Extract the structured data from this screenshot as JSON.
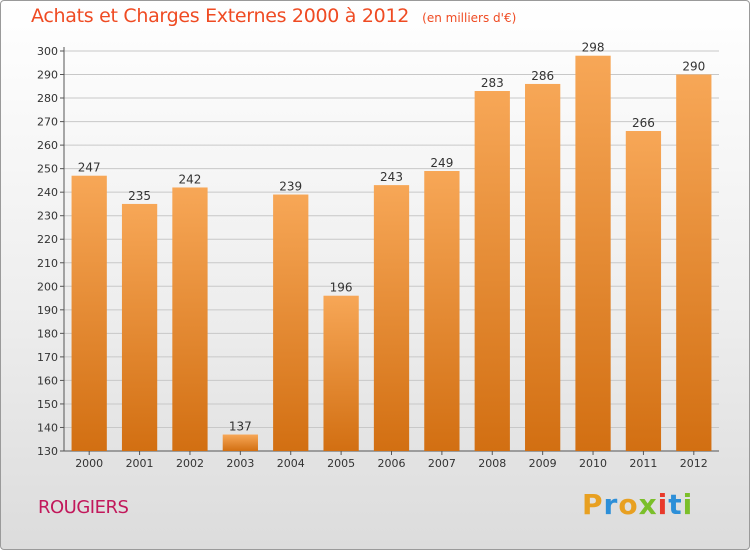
{
  "header": {
    "title": "Achats et Charges Externes 2000 à 2012",
    "subtitle": "(en milliers d'€)"
  },
  "footer": {
    "commune": "ROUGIERS",
    "brand_letters": [
      "P",
      "r",
      "o",
      "x",
      "i",
      "t",
      "i"
    ],
    "brand_colors": [
      "#e8a021",
      "#2d8fd8",
      "#e8a021",
      "#7bbf2a",
      "#e8392a",
      "#2d8fd8",
      "#7bbf2a"
    ]
  },
  "colors": {
    "bar_light": "#f7a757",
    "bar_dark": "#d26f12",
    "grid": "#c8c8c8",
    "text": "#333333"
  },
  "chart_data": {
    "type": "bar",
    "title": "Achats et Charges Externes 2000 à 2012",
    "subtitle": "(en milliers d'€)",
    "categories": [
      "2000",
      "2001",
      "2002",
      "2003",
      "2004",
      "2005",
      "2006",
      "2007",
      "2008",
      "2009",
      "2010",
      "2011",
      "2012"
    ],
    "values": [
      247,
      235,
      242,
      137,
      239,
      196,
      243,
      249,
      283,
      286,
      298,
      266,
      290
    ],
    "data_labels": [
      "247",
      "235",
      "242",
      "137",
      "239",
      "196",
      "243",
      "249",
      "283",
      "286",
      "298",
      "266",
      "290"
    ],
    "ylim": [
      130,
      300
    ],
    "yticks": [
      130,
      140,
      150,
      160,
      170,
      180,
      190,
      200,
      210,
      220,
      230,
      240,
      250,
      260,
      270,
      280,
      290,
      300
    ],
    "grid": true,
    "xlabel": "",
    "ylabel": ""
  }
}
